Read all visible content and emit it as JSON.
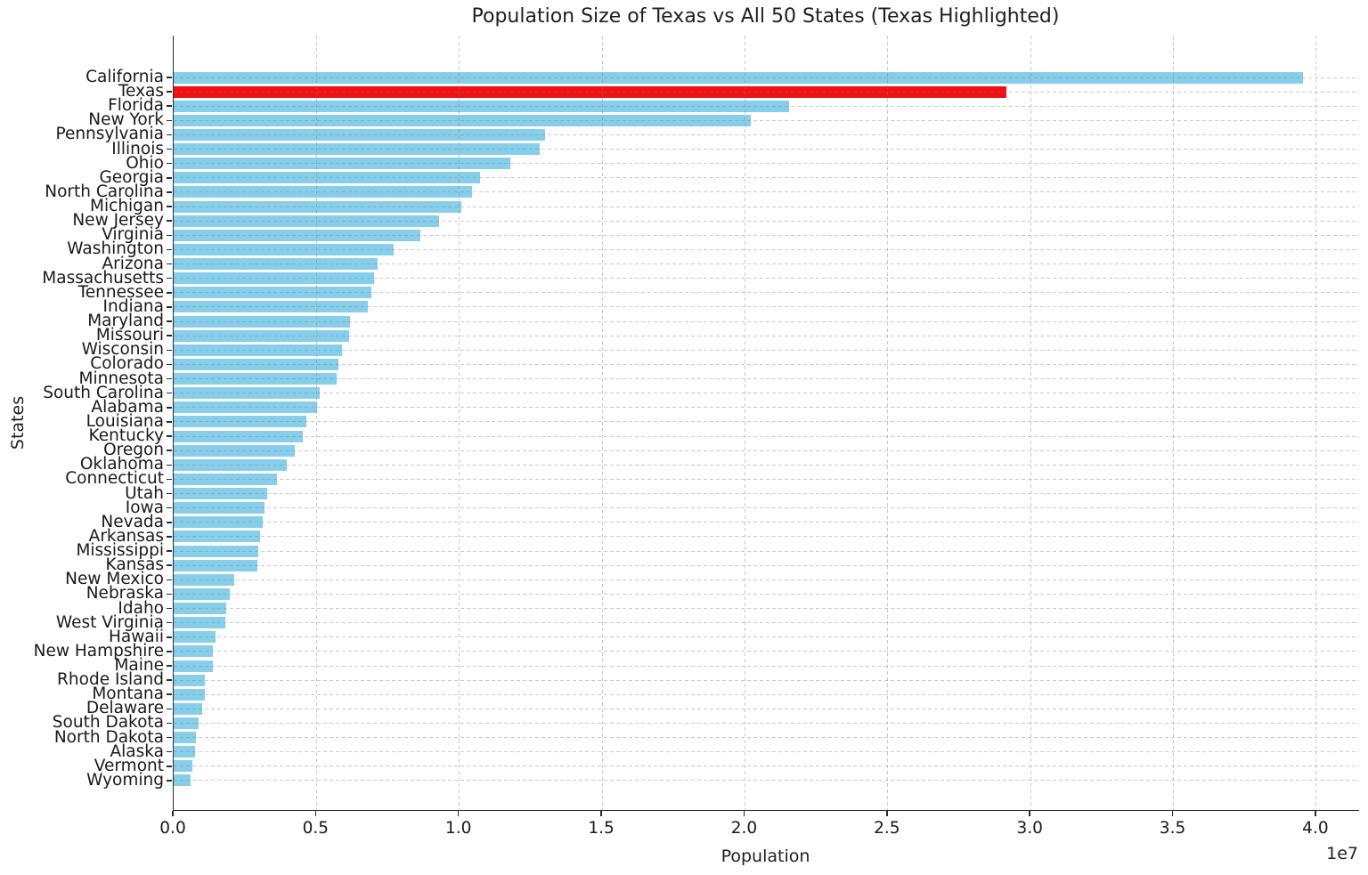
{
  "chart_data": {
    "type": "bar",
    "orientation": "horizontal",
    "title": "Population Size of Texas vs All 50 States (Texas Highlighted)",
    "xlabel": "Population",
    "ylabel": "States",
    "axis_offset_text": "1e7",
    "xlim": [
      0,
      41500000
    ],
    "x_tick_values": [
      0,
      5000000,
      10000000,
      15000000,
      20000000,
      25000000,
      30000000,
      35000000,
      40000000
    ],
    "x_tick_labels": [
      "0.0",
      "0.5",
      "1.0",
      "1.5",
      "2.0",
      "2.5",
      "3.0",
      "3.5",
      "4.0"
    ],
    "grid": true,
    "bar_color": "#87CEEB",
    "highlight_state": "Texas",
    "highlight_color": "#ee1212",
    "categories": [
      "California",
      "Texas",
      "Florida",
      "New York",
      "Pennsylvania",
      "Illinois",
      "Ohio",
      "Georgia",
      "North Carolina",
      "Michigan",
      "New Jersey",
      "Virginia",
      "Washington",
      "Arizona",
      "Massachusetts",
      "Tennessee",
      "Indiana",
      "Maryland",
      "Missouri",
      "Wisconsin",
      "Colorado",
      "Minnesota",
      "South Carolina",
      "Alabama",
      "Louisiana",
      "Kentucky",
      "Oregon",
      "Oklahoma",
      "Connecticut",
      "Utah",
      "Iowa",
      "Nevada",
      "Arkansas",
      "Mississippi",
      "Kansas",
      "New Mexico",
      "Nebraska",
      "Idaho",
      "West Virginia",
      "Hawaii",
      "New Hampshire",
      "Maine",
      "Rhode Island",
      "Montana",
      "Delaware",
      "South Dakota",
      "North Dakota",
      "Alaska",
      "Vermont",
      "Wyoming"
    ],
    "values": [
      39538223,
      29145505,
      21538187,
      20201249,
      13002700,
      12812508,
      11799448,
      10711908,
      10439388,
      10077331,
      9288994,
      8631393,
      7705281,
      7151502,
      7029917,
      6910840,
      6785528,
      6177224,
      6154913,
      5893718,
      5773714,
      5706494,
      5118425,
      5024279,
      4657757,
      4505836,
      4237256,
      3959353,
      3605944,
      3271616,
      3190369,
      3104614,
      3011524,
      2961279,
      2937880,
      2117522,
      1961504,
      1839106,
      1793716,
      1455271,
      1377529,
      1362359,
      1097379,
      1084225,
      989948,
      886667,
      779094,
      733391,
      643077,
      576851
    ]
  }
}
